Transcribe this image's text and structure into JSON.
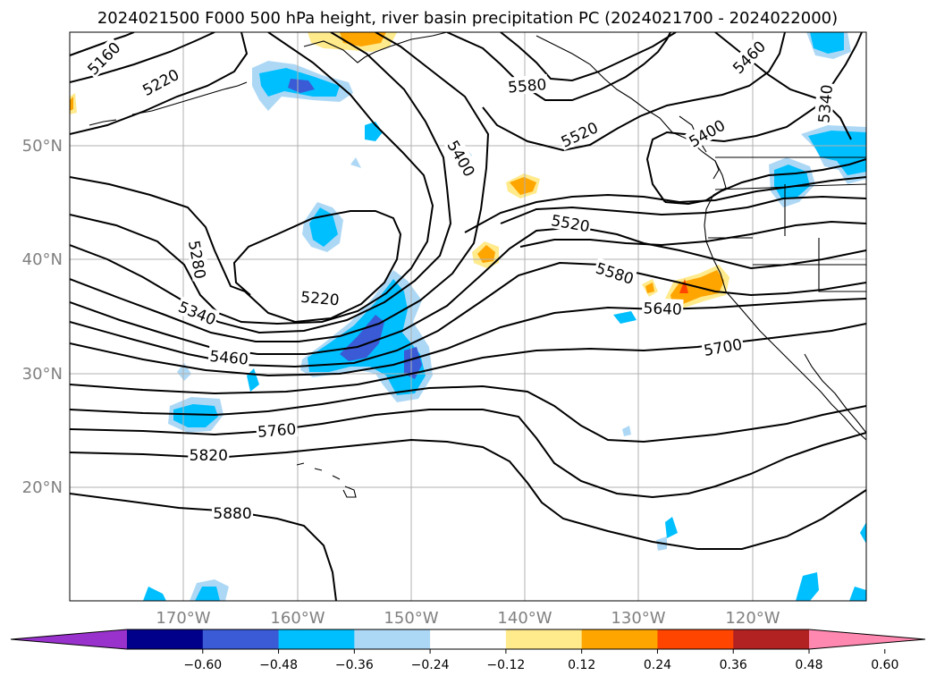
{
  "title": "2024021500 F000 500 hPa height, river basin precipitation PC (2024021700 - 2024022000)",
  "map": {
    "lon_range": [
      -180,
      -110
    ],
    "lat_range": [
      10,
      60
    ],
    "lat_ticks": [
      {
        "value": 50,
        "label": "50°N"
      },
      {
        "value": 40,
        "label": "40°N"
      },
      {
        "value": 30,
        "label": "30°N"
      },
      {
        "value": 20,
        "label": "20°N"
      }
    ],
    "lon_ticks": [
      {
        "value": -170,
        "label": "170°W"
      },
      {
        "value": -160,
        "label": "160°W"
      },
      {
        "value": -150,
        "label": "150°W"
      },
      {
        "value": -140,
        "label": "140°W"
      },
      {
        "value": -130,
        "label": "130°W"
      },
      {
        "value": -120,
        "label": "120°W"
      }
    ],
    "grid": true,
    "tick_color": "#808080"
  },
  "height_contours": {
    "units": "geopotential height (m)",
    "labels": [
      {
        "text": "5160",
        "lon": -177,
        "lat": 57.7,
        "rot": -45
      },
      {
        "text": "5220",
        "lon": -172,
        "lat": 55.6,
        "rot": -28
      },
      {
        "text": "5400",
        "lon": -145.6,
        "lat": 48.9,
        "rot": 60
      },
      {
        "text": "5580",
        "lon": -139.8,
        "lat": 55.3,
        "rot": -5
      },
      {
        "text": "5520",
        "lon": -135.2,
        "lat": 51.0,
        "rot": -25
      },
      {
        "text": "5460",
        "lon": -120.3,
        "lat": 57.8,
        "rot": -45
      },
      {
        "text": "5340",
        "lon": -113.6,
        "lat": 53.7,
        "rot": -85
      },
      {
        "text": "5400",
        "lon": -124,
        "lat": 51.1,
        "rot": -30
      },
      {
        "text": "5520",
        "lon": -136,
        "lat": 43.2,
        "rot": 10
      },
      {
        "text": "5280",
        "lon": -168.8,
        "lat": 40.0,
        "rot": 80
      },
      {
        "text": "5580",
        "lon": -132.1,
        "lat": 38.8,
        "rot": 18
      },
      {
        "text": "5220",
        "lon": -158,
        "lat": 36.6,
        "rot": 5
      },
      {
        "text": "5340",
        "lon": -168.8,
        "lat": 35.3,
        "rot": 22
      },
      {
        "text": "5640",
        "lon": -127.9,
        "lat": 35.7,
        "rot": 2
      },
      {
        "text": "5460",
        "lon": -166,
        "lat": 31.4,
        "rot": 5
      },
      {
        "text": "5700",
        "lon": -122.6,
        "lat": 32.3,
        "rot": -10
      },
      {
        "text": "5760",
        "lon": -161.8,
        "lat": 25.0,
        "rot": -5
      },
      {
        "text": "5820",
        "lon": -167.8,
        "lat": 22.8,
        "rot": 0
      },
      {
        "text": "5880",
        "lon": -165.7,
        "lat": 17.7,
        "rot": 0
      }
    ]
  },
  "precip_pc": {
    "colorbar": {
      "ticks": [
        "−0.60",
        "−0.48",
        "−0.36",
        "−0.24",
        "−0.12",
        "0.12",
        "0.24",
        "0.36",
        "0.48",
        "0.60"
      ],
      "colors": [
        "#9932cc",
        "#00008b",
        "#3a5bd5",
        "#00bfff",
        "#add8f5",
        "#ffffff",
        "#ffea8c",
        "#ffa500",
        "#ff4500",
        "#b22222",
        "#ff88b0"
      ],
      "extend": "both"
    }
  }
}
